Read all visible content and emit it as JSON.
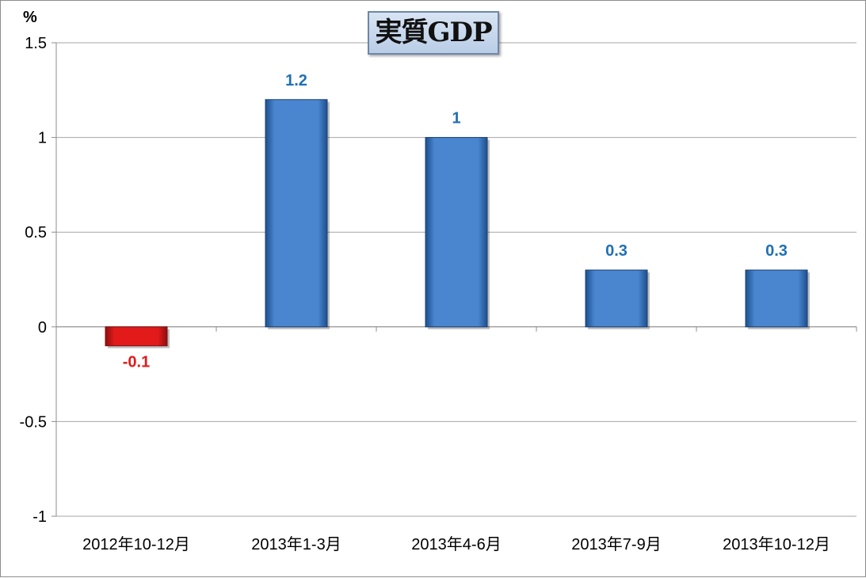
{
  "chart_data": {
    "type": "bar",
    "title": "実質GDP",
    "ylabel": "%",
    "xlabel": "",
    "categories": [
      "2012年10-12月",
      "2013年1-3月",
      "2013年4-6月",
      "2013年7-9月",
      "2013年10-12月"
    ],
    "values": [
      -0.1,
      1.2,
      1,
      0.3,
      0.3
    ],
    "data_labels": [
      "-0.1",
      "1.2",
      "1",
      "0.3",
      "0.3"
    ],
    "ylim": [
      -1,
      1.5
    ],
    "yticks": [
      -1,
      -0.5,
      0,
      0.5,
      1,
      1.5
    ],
    "ytick_labels": [
      "-1",
      "-0.5",
      "0",
      "0.5",
      "1",
      "1.5"
    ],
    "grid": true,
    "legend": "none",
    "colors": {
      "positive_bar": "#4a86cf",
      "negative_bar": "#e31a1a",
      "positive_label": "#1f6fb5",
      "negative_label": "#e31a1a"
    }
  }
}
